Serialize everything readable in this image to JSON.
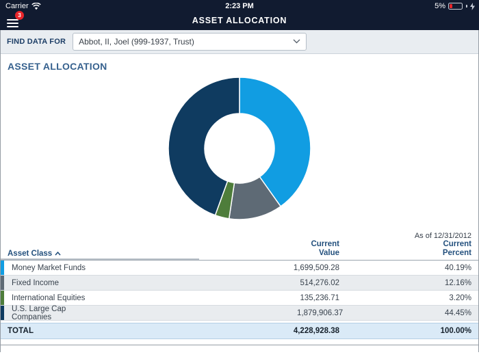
{
  "status_bar": {
    "carrier": "Carrier",
    "time": "2:23 PM",
    "battery_percent": "5%"
  },
  "nav": {
    "title": "ASSET ALLOCATION",
    "menu_badge_count": "3",
    "badge_color": "#e8252a"
  },
  "find_bar": {
    "label": "FIND DATA FOR",
    "selected_option": "Abbot, II, Joel (999-1937, Trust)"
  },
  "section": {
    "title": "ASSET ALLOCATION",
    "as_of": "As of 12/31/2012"
  },
  "chart_data": {
    "type": "pie",
    "subtype": "donut",
    "title": "Asset Allocation",
    "annotation": "As of 12/31/2012",
    "categories": [
      "Money Market Funds",
      "Fixed Income",
      "International Equities",
      "U.S. Large Cap Companies"
    ],
    "values": [
      40.19,
      12.16,
      3.2,
      44.45
    ],
    "colors": [
      "#119de2",
      "#5e6a75",
      "#4e7d3b",
      "#0f3b60"
    ],
    "start_angle_deg": 0,
    "direction": "clockwise",
    "inner_radius_ratio": 0.49,
    "legend": "none"
  },
  "table": {
    "header": {
      "asset_class": "Asset Class",
      "value_line1": "Current",
      "value_line2": "Value",
      "percent_line1": "Current",
      "percent_line2": "Percent"
    },
    "sort": {
      "column": "Asset Class",
      "direction": "asc"
    },
    "rows": [
      {
        "asset_class": "Money Market Funds",
        "current_value": "1,699,509.28",
        "current_percent": "40.19%",
        "marker_color": "#119de2"
      },
      {
        "asset_class": "Fixed Income",
        "current_value": "514,276.02",
        "current_percent": "12.16%",
        "marker_color": "#5e6a75"
      },
      {
        "asset_class": "International Equities",
        "current_value": "135,236.71",
        "current_percent": "3.20%",
        "marker_color": "#4e7d3b"
      },
      {
        "asset_class": "U.S. Large Cap Companies",
        "current_value": "1,879,906.37",
        "current_percent": "44.45%",
        "marker_color": "#0f3b60"
      }
    ],
    "total": {
      "label": "TOTAL",
      "current_value": "4,228,928.38",
      "current_percent": "100.00%"
    }
  }
}
